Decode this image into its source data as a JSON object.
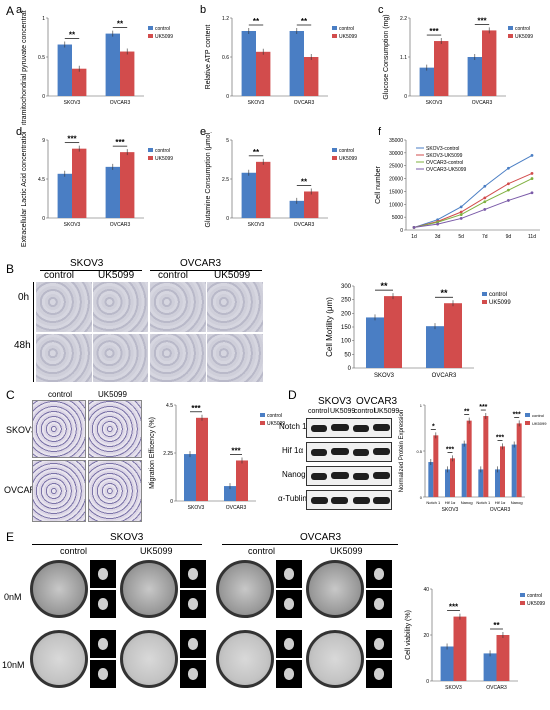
{
  "panel_letters": {
    "A": "A",
    "a": "a",
    "b": "b",
    "c": "c",
    "d": "d",
    "e": "e",
    "f": "f",
    "B": "B",
    "C": "C",
    "D": "D",
    "E": "E"
  },
  "legend": {
    "control": "control",
    "uk": "UK5099"
  },
  "lines_legend": [
    "SKOV3-control",
    "SKOV3-UK5099",
    "OVCAR3-control",
    "OVCAR3-UK5099"
  ],
  "colors": {
    "control": "#4a7ec4",
    "uk": "#d24c4c",
    "green": "#7fb03f",
    "purple": "#7a5aa8"
  },
  "B_labels": {
    "skov3": "SKOV3",
    "ovcar3": "OVCAR3",
    "control": "control",
    "uk": "UK5099",
    "h0": "0h",
    "h48": "48h"
  },
  "C_labels": {
    "control": "control",
    "uk": "UK5099",
    "skov3": "SKOV3",
    "ovcar3": "OVCAR3"
  },
  "D_labels": {
    "skov3": "SKOV3",
    "ovcar3": "OVCAR3",
    "lane": "control",
    "lane2": "UK5099",
    "rows": [
      "Notch 1",
      "Hif 1α",
      "Nanog",
      "α-Tublin"
    ]
  },
  "E_labels": {
    "skov3": "SKOV3",
    "ovcar3": "OVCAR3",
    "control": "control",
    "uk": "UK5099",
    "nm0": "0nM",
    "nm10": "10nM"
  },
  "chart_data": [
    {
      "id": "a",
      "type": "bar",
      "categories": [
        "SKOV3",
        "OVCAR3"
      ],
      "ylabel": "Intramitochondrial pyruvate concentration (μM)",
      "ymax": 1.0,
      "series": [
        {
          "name": "control",
          "values": [
            0.66,
            0.8
          ]
        },
        {
          "name": "UK5099",
          "values": [
            0.35,
            0.57
          ]
        }
      ],
      "sig": [
        "**",
        "**"
      ]
    },
    {
      "id": "b",
      "type": "bar",
      "categories": [
        "SKOV3",
        "OVCAR3"
      ],
      "ylabel": "Relative ATP content",
      "ymax": 1.2,
      "series": [
        {
          "name": "control",
          "values": [
            1.0,
            1.0
          ]
        },
        {
          "name": "UK5099",
          "values": [
            0.68,
            0.6
          ]
        }
      ],
      "sig": [
        "**",
        "**"
      ]
    },
    {
      "id": "c",
      "type": "bar",
      "categories": [
        "SKOV3",
        "OVCAR3"
      ],
      "ylabel": "Glucose Consumption (mg)",
      "ymax": 2.2,
      "series": [
        {
          "name": "control",
          "values": [
            0.8,
            1.1
          ]
        },
        {
          "name": "UK5099",
          "values": [
            1.55,
            1.85
          ]
        }
      ],
      "sig": [
        "***",
        "***"
      ]
    },
    {
      "id": "d",
      "type": "bar",
      "categories": [
        "SKOV3",
        "OVCAR3"
      ],
      "ylabel": "Extracellular Lactic Acid concentration (mM)",
      "ymax": 9,
      "series": [
        {
          "name": "control",
          "values": [
            5.1,
            5.9
          ]
        },
        {
          "name": "UK5099",
          "values": [
            8.0,
            7.6
          ]
        }
      ],
      "sig": [
        "***",
        "***"
      ]
    },
    {
      "id": "e",
      "type": "bar",
      "categories": [
        "SKOV3",
        "OVCAR3"
      ],
      "ylabel": "Glutamine Consumption (μmol)",
      "ymax": 5,
      "series": [
        {
          "name": "control",
          "values": [
            2.9,
            1.1
          ]
        },
        {
          "name": "UK5099",
          "values": [
            3.6,
            1.7
          ]
        }
      ],
      "sig": [
        "**",
        "**"
      ]
    },
    {
      "id": "f",
      "type": "line",
      "categories": [
        "1d",
        "3d",
        "5d",
        "7d",
        "9d",
        "11d"
      ],
      "ylabel": "Cell number",
      "ymax": 35000,
      "yticks": [
        0,
        5000,
        10000,
        15000,
        20000,
        25000,
        30000,
        35000
      ],
      "series": [
        {
          "name": "SKOV3-control",
          "values": [
            1000,
            4000,
            9000,
            17000,
            24000,
            29000
          ]
        },
        {
          "name": "SKOV3-UK5099",
          "values": [
            1000,
            3300,
            7000,
            12500,
            18000,
            22000
          ]
        },
        {
          "name": "OVCAR3-control",
          "values": [
            1000,
            3000,
            6000,
            11000,
            15500,
            20000
          ]
        },
        {
          "name": "OVCAR3-UK5099",
          "values": [
            1000,
            2300,
            4500,
            8000,
            11500,
            14500
          ]
        }
      ]
    },
    {
      "id": "B",
      "type": "bar",
      "categories": [
        "SKOV3",
        "OVCAR3"
      ],
      "ylabel": "Cell Motility (μm)",
      "ymax": 300,
      "yticks": [
        0,
        50,
        100,
        150,
        200,
        250,
        300
      ],
      "series": [
        {
          "name": "control",
          "values": [
            185,
            153
          ]
        },
        {
          "name": "UK5099",
          "values": [
            263,
            237
          ]
        }
      ],
      "sig": [
        "**",
        "**"
      ]
    },
    {
      "id": "C",
      "type": "bar",
      "categories": [
        "SKOV3",
        "OVCAR3"
      ],
      "ylabel": "Migration Efficency (%)",
      "ymax": 4.5,
      "series": [
        {
          "name": "control",
          "values": [
            2.2,
            0.7
          ]
        },
        {
          "name": "UK5099",
          "values": [
            3.9,
            1.9
          ]
        }
      ],
      "sig": [
        "***",
        "***"
      ]
    },
    {
      "id": "D",
      "type": "bar",
      "categories": [
        "Notch 1",
        "Hif 1α",
        "Nanog",
        "Notch 1",
        "Hif 1α",
        "Nanog"
      ],
      "groups": [
        "SKOV3",
        "OVCAR3"
      ],
      "ylabel": "Normalized Protein Expression",
      "ymax": 1.0,
      "series": [
        {
          "name": "control",
          "values": [
            0.38,
            0.3,
            0.58,
            0.3,
            0.3,
            0.57
          ]
        },
        {
          "name": "UK5099",
          "values": [
            0.67,
            0.42,
            0.83,
            0.88,
            0.55,
            0.8
          ]
        }
      ],
      "sig": [
        "*",
        "***",
        "**",
        "***",
        "***",
        "***"
      ]
    },
    {
      "id": "E",
      "type": "bar",
      "categories": [
        "SKOV3",
        "OVCAR3"
      ],
      "ylabel": "Cell viability (%)",
      "ymax": 40,
      "series": [
        {
          "name": "control",
          "values": [
            15,
            12
          ]
        },
        {
          "name": "UK5099",
          "values": [
            28,
            20
          ]
        }
      ],
      "sig": [
        "***",
        "**"
      ]
    }
  ]
}
